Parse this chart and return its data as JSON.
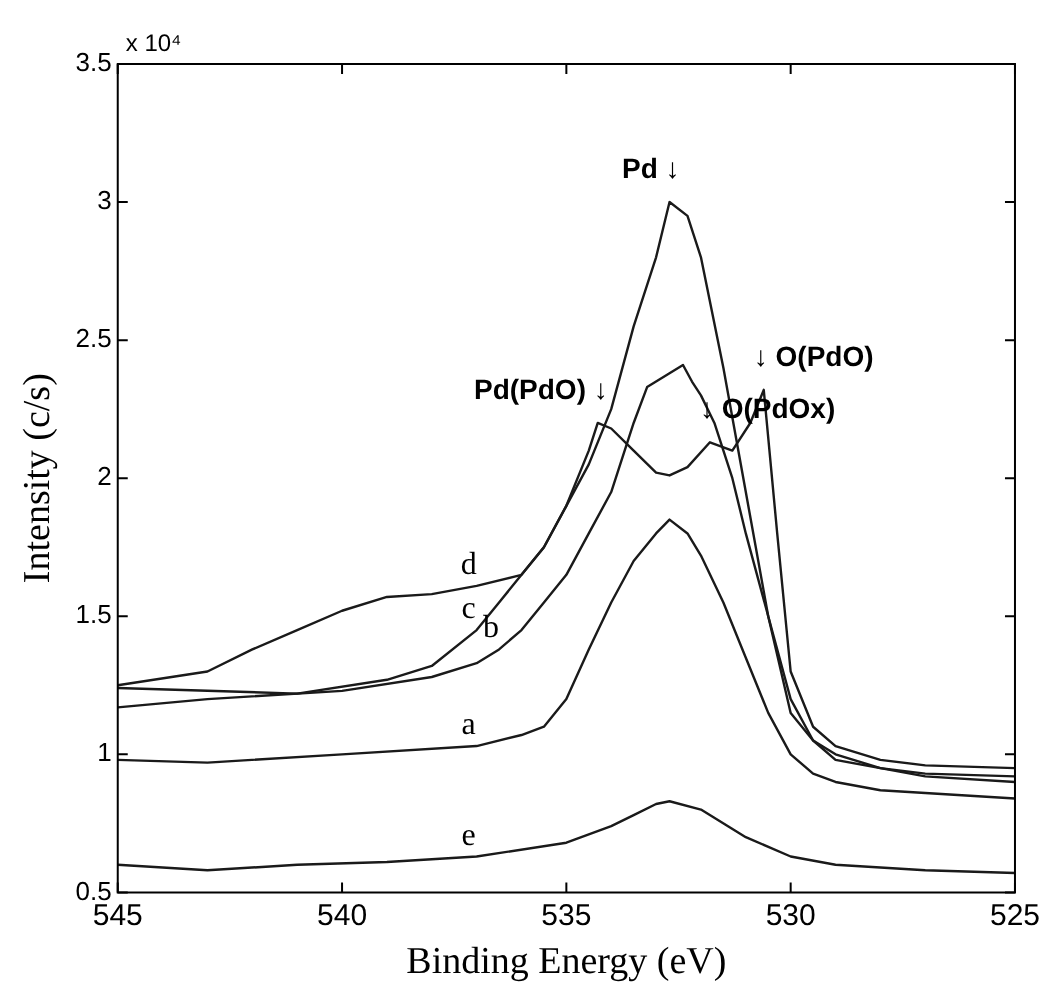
{
  "chart_data": {
    "type": "line",
    "xlabel": "Binding Energy (eV)",
    "ylabel": "Intensity (c/s)",
    "xlim": [
      545,
      525
    ],
    "xticks": [
      545,
      540,
      535,
      530,
      525
    ],
    "ylim": [
      0.5,
      3.5
    ],
    "yticks": [
      0.5,
      1,
      1.5,
      2,
      2.5,
      3,
      3.5
    ],
    "grid": false,
    "legend": false,
    "marker": "none",
    "line_style": "solid",
    "series": [
      {
        "color": "#1a1a1a",
        "x": [
          545,
          543,
          541,
          539,
          537,
          535,
          534,
          533.5,
          533,
          532.7,
          532,
          531,
          530,
          529,
          527,
          525
        ],
        "values": [
          0.6,
          0.58,
          0.6,
          0.61,
          0.63,
          0.68,
          0.74,
          0.78,
          0.82,
          0.83,
          0.8,
          0.7,
          0.63,
          0.6,
          0.58,
          0.57
        ]
      },
      {
        "color": "#1a1a1a",
        "x": [
          545,
          543,
          540,
          537,
          536,
          535.5,
          535,
          534.5,
          534,
          533.5,
          533,
          532.7,
          532.3,
          532,
          531.5,
          531,
          530.5,
          530,
          529.5,
          529,
          528,
          527,
          525
        ],
        "values": [
          0.98,
          0.97,
          1.0,
          1.03,
          1.07,
          1.1,
          1.2,
          1.38,
          1.55,
          1.7,
          1.8,
          1.85,
          1.8,
          1.72,
          1.55,
          1.35,
          1.15,
          1.0,
          0.93,
          0.9,
          0.87,
          0.86,
          0.84
        ]
      },
      {
        "color": "#1a1a1a",
        "x": [
          545,
          543,
          540,
          538,
          537,
          536.5,
          536,
          535.5,
          535,
          534.5,
          534,
          533.5,
          533.2,
          532.7,
          532.4,
          532.2,
          532,
          531.7,
          531.3,
          531,
          530.5,
          530,
          529.5,
          529,
          528,
          527,
          525
        ],
        "values": [
          1.17,
          1.2,
          1.23,
          1.28,
          1.33,
          1.38,
          1.45,
          1.55,
          1.65,
          1.8,
          1.95,
          2.2,
          2.33,
          2.38,
          2.41,
          2.35,
          2.3,
          2.2,
          2.0,
          1.8,
          1.5,
          1.2,
          1.05,
          0.98,
          0.95,
          0.92,
          0.9
        ]
      },
      {
        "color": "#1a1a1a",
        "x": [
          545,
          543,
          541,
          539,
          538,
          537,
          536.5,
          536,
          535.5,
          535,
          534.5,
          534,
          533.5,
          533,
          532.7,
          532.3,
          532,
          531.5,
          531,
          530.5,
          530,
          529.5,
          529,
          528,
          527,
          525
        ],
        "values": [
          1.24,
          1.23,
          1.22,
          1.27,
          1.32,
          1.45,
          1.55,
          1.65,
          1.75,
          1.9,
          2.05,
          2.25,
          2.55,
          2.8,
          3.0,
          2.95,
          2.8,
          2.4,
          1.95,
          1.5,
          1.15,
          1.05,
          1.0,
          0.95,
          0.93,
          0.92
        ]
      },
      {
        "color": "#1a1a1a",
        "x": [
          545,
          543,
          542,
          541,
          540,
          539,
          538,
          537,
          536,
          535.5,
          535,
          534.5,
          534.3,
          534,
          533.5,
          533,
          532.7,
          532.3,
          531.8,
          531.3,
          530.9,
          530.6,
          530.3,
          530,
          529.5,
          529,
          528,
          527,
          525
        ],
        "values": [
          1.25,
          1.3,
          1.38,
          1.45,
          1.52,
          1.57,
          1.58,
          1.61,
          1.65,
          1.75,
          1.9,
          2.1,
          2.2,
          2.18,
          2.1,
          2.02,
          2.01,
          2.04,
          2.13,
          2.1,
          2.2,
          2.32,
          1.8,
          1.3,
          1.1,
          1.03,
          0.98,
          0.96,
          0.95
        ]
      }
    ],
    "annotations": [
      "x 10⁴",
      {
        "text": "Pd ↓",
        "x": 532.7,
        "y": 3.0
      },
      {
        "text": "Pd(PdO) ↓",
        "x": 534.3,
        "y": 2.2
      },
      {
        "text": "↓ O(PdO)",
        "x": 530.6,
        "y": 2.32
      },
      {
        "text": "↓ O(PdOx)",
        "x": 531.8,
        "y": 2.13
      },
      {
        "text": "d",
        "x": 537,
        "y": 1.61
      },
      {
        "text": "c",
        "x": 537,
        "y": 1.45
      },
      {
        "text": "b",
        "x": 536.5,
        "y": 1.38
      },
      {
        "text": "a",
        "x": 537,
        "y": 1.03
      },
      {
        "text": "e",
        "x": 537,
        "y": 0.63
      }
    ]
  }
}
